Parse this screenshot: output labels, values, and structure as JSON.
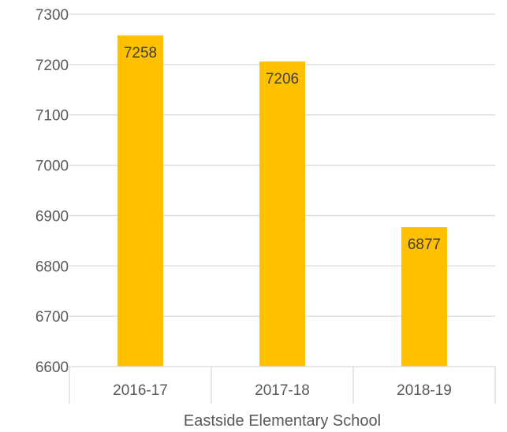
{
  "chart_data": {
    "type": "bar",
    "categories": [
      "2016-17",
      "2017-18",
      "2018-19"
    ],
    "values": [
      7258,
      7206,
      6877
    ],
    "data_labels": [
      "7258",
      "7206",
      "6877"
    ],
    "title": "",
    "xlabel": "Eastside Elementary School",
    "ylabel": "",
    "ylim": [
      6600,
      7300
    ],
    "yticks": [
      6600,
      6700,
      6800,
      6900,
      7000,
      7100,
      7200,
      7300
    ],
    "ytick_labels": [
      "6600",
      "6700",
      "6800",
      "6900",
      "7000",
      "7100",
      "7200",
      "7300"
    ],
    "grid": true,
    "legend": "none",
    "colors": {
      "bar": "#FFC000",
      "grid": "#D9D9D9",
      "tick_text": "#595959",
      "data_label_text": "#404040"
    }
  }
}
